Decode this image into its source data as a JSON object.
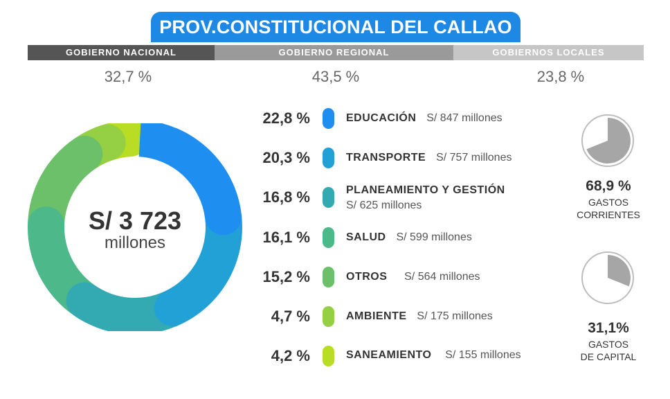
{
  "title": "PROV.CONSTITUCIONAL DEL CALLAO",
  "government_levels": [
    {
      "label": "GOBIERNO NACIONAL",
      "percent": "32,7 %",
      "color": "#555555"
    },
    {
      "label": "GOBIERNO REGIONAL",
      "percent": "43,5 %",
      "color": "#9a9a9a"
    },
    {
      "label": "GOBIERNOS LOCALES",
      "percent": "23,8 %",
      "color": "#c6c6c6"
    }
  ],
  "total": {
    "amount": "S/ 3 723",
    "unit": "millones"
  },
  "chart_data": [
    {
      "type": "pie",
      "style": "donut",
      "categories": [
        "EDUCACIÓN",
        "TRANSPORTE",
        "PLANEAMIENTO Y GESTIÓN",
        "SALUD",
        "OTROS",
        "AMBIENTE",
        "SANEAMIENTO"
      ],
      "values": [
        22.8,
        20.3,
        16.8,
        16.1,
        15.2,
        4.7,
        4.2
      ],
      "percent_labels": [
        "22,8 %",
        "20,3 %",
        "16,8 %",
        "16,1 %",
        "15,2 %",
        "4,7 %",
        "4,2 %"
      ],
      "amount_labels": [
        "S/ 847 millones",
        "S/ 757 millones",
        "S/ 625 millones",
        "S/ 599 millones",
        "S/ 564 millones",
        "S/ 175 millones",
        "S/ 155 millones"
      ],
      "colors": [
        "#1e8ff0",
        "#22a1d6",
        "#33aab2",
        "#4db88a",
        "#6cc06a",
        "#95cf43",
        "#b9dc24"
      ]
    },
    {
      "type": "pie",
      "values": [
        68.9,
        31.1
      ],
      "percent_label": "68,9 %",
      "label": "GASTOS CORRIENTES",
      "label_lines": [
        "GASTOS",
        "CORRIENTES"
      ],
      "colors": [
        "#a6a6a6",
        "#ffffff"
      ]
    },
    {
      "type": "pie",
      "values": [
        31.1,
        68.9
      ],
      "percent_label": "31,1%",
      "label": "GASTOS DE CAPITAL",
      "label_lines": [
        "GASTOS",
        "DE CAPITAL"
      ],
      "colors": [
        "#a6a6a6",
        "#ffffff"
      ]
    }
  ]
}
